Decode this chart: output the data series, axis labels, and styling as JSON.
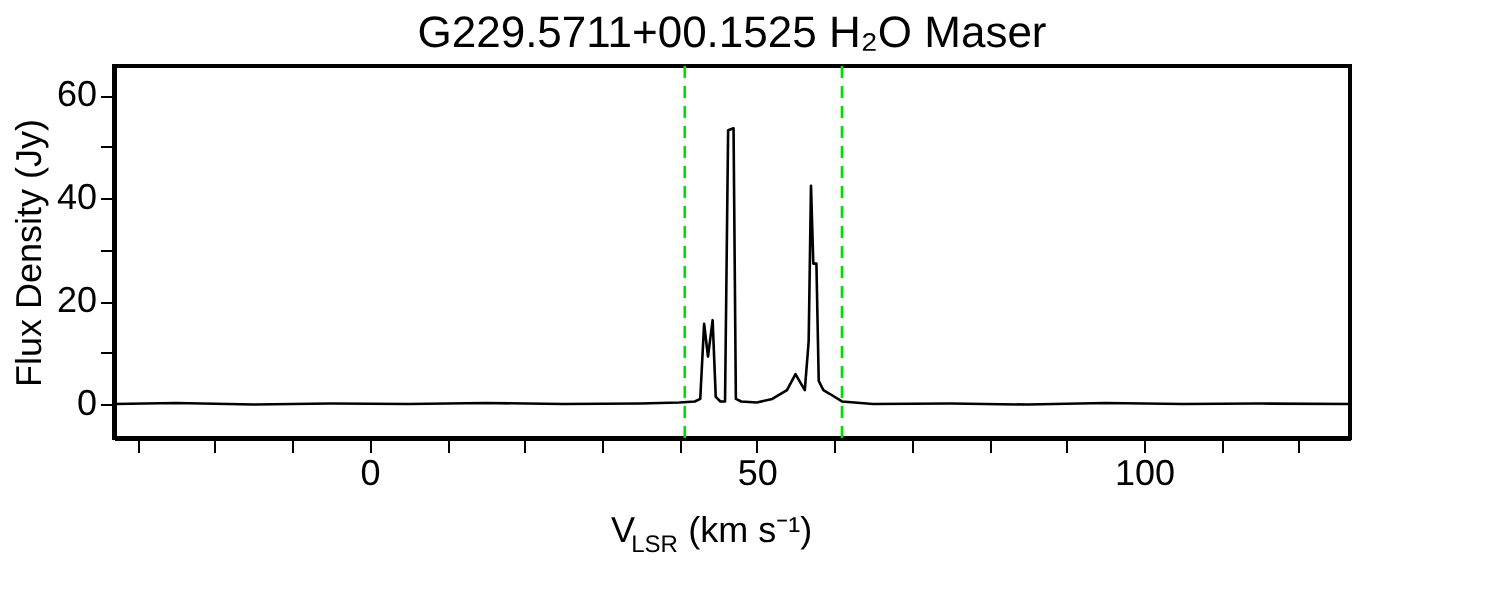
{
  "chart_data": {
    "type": "line",
    "title": "G229.5711+00.1525 H₂O Maser",
    "xlabel": "V$_{LSR}$ (km s⁻¹)",
    "ylabel": "Flux Density (Jy)",
    "x": [
      -33,
      -25,
      -15,
      -5,
      5,
      15,
      25,
      35,
      40,
      42,
      42.7,
      43.2,
      43.7,
      44.3,
      44.7,
      45.3,
      45.9,
      46.3,
      47.0,
      47.3,
      48,
      50,
      52,
      53.9,
      55.0,
      55.5,
      56.2,
      56.7,
      57.0,
      57.3,
      57.7,
      58.0,
      58.6,
      59.4,
      61,
      65,
      75,
      85,
      95,
      105,
      115,
      126.6
    ],
    "series": [
      {
        "color": "#000000",
        "values": [
          0,
          0.2,
          -0.1,
          0.1,
          0,
          0.2,
          0,
          0.1,
          0.3,
          0.5,
          1,
          15.6,
          9.2,
          16.3,
          1.4,
          0.5,
          0.5,
          53.2,
          53.6,
          1,
          0.5,
          0.3,
          1,
          2.7,
          5.8,
          4.5,
          2.7,
          12.2,
          42.4,
          27.3,
          27.3,
          4.5,
          2.7,
          2,
          0.5,
          0,
          0.1,
          -0.1,
          0.2,
          0,
          0.1,
          0
        ]
      }
    ],
    "xlim": [
      -33,
      126.6
    ],
    "ylim": [
      -6.6,
      65.7
    ],
    "xticks": [
      {
        "value": -30,
        "label": null
      },
      {
        "value": -20,
        "label": null
      },
      {
        "value": -10,
        "label": null
      },
      0,
      {
        "value": 10,
        "label": null
      },
      {
        "value": 20,
        "label": null
      },
      {
        "value": 30,
        "label": null
      },
      {
        "value": 40,
        "label": null
      },
      50,
      {
        "value": 60,
        "label": null
      },
      {
        "value": 70,
        "label": null
      },
      {
        "value": 80,
        "label": null
      },
      {
        "value": 90,
        "label": null
      },
      100,
      {
        "value": 110,
        "label": null
      },
      {
        "value": 120,
        "label": null
      }
    ],
    "yticks": [
      0,
      {
        "value": 10,
        "label": null
      },
      20,
      {
        "value": 30,
        "label": null
      },
      40,
      {
        "value": 50,
        "label": null
      },
      60
    ],
    "ref_lines": [
      {
        "axis": "x",
        "value": 40.7,
        "color": "#00dd00",
        "line_style": "dashed"
      },
      {
        "axis": "x",
        "value": 61,
        "color": "#00dd00",
        "line_style": "dashed"
      }
    ],
    "grid": false,
    "marker": "none",
    "line_style": "solid"
  }
}
